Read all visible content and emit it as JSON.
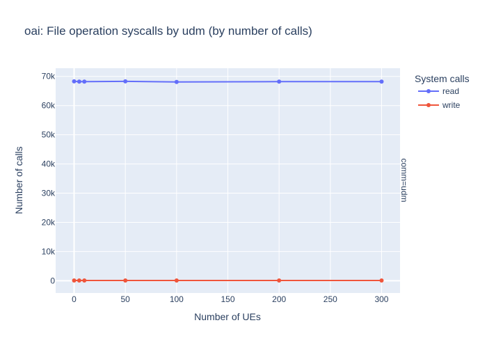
{
  "chart_data": {
    "type": "line",
    "title": "oai: File operation syscalls by udm (by number of calls)",
    "xlabel": "Number of UEs",
    "ylabel": "Number of calls",
    "x": [
      0,
      5,
      10,
      50,
      100,
      200,
      300
    ],
    "xlim": [
      -18,
      318
    ],
    "ylim": [
      -4200,
      72800
    ],
    "xticks": [
      0,
      50,
      100,
      150,
      200,
      250,
      300
    ],
    "xtick_labels": [
      "0",
      "50",
      "100",
      "150",
      "200",
      "250",
      "300"
    ],
    "yticks": [
      0,
      10000,
      20000,
      30000,
      40000,
      50000,
      60000,
      70000
    ],
    "ytick_labels": [
      "0",
      "10k",
      "20k",
      "30k",
      "40k",
      "50k",
      "60k",
      "70k"
    ],
    "grid": true,
    "facet_label": "comm=udm",
    "legend": {
      "title": "System calls",
      "placement": "right"
    },
    "series": [
      {
        "name": "read",
        "color": "#636efa",
        "values": [
          68300,
          68200,
          68200,
          68300,
          68100,
          68200,
          68200
        ]
      },
      {
        "name": "write",
        "color": "#ef553b",
        "values": [
          100,
          100,
          100,
          100,
          100,
          100,
          100
        ]
      }
    ],
    "colors": {
      "plot_background": "#e5ecf6",
      "grid": "#ffffff",
      "text": "#2a3f5f"
    }
  }
}
